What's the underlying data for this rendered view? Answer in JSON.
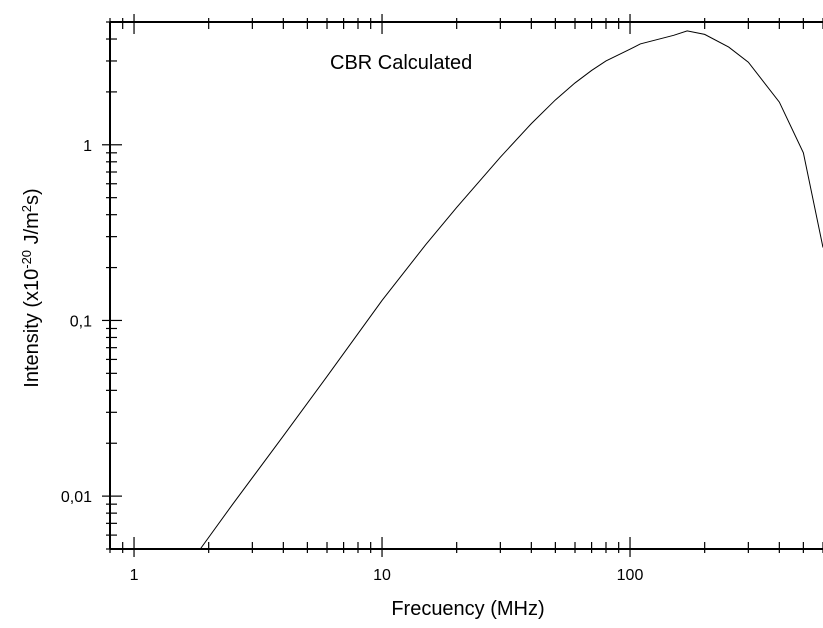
{
  "chart_data": {
    "type": "line",
    "title": "",
    "annotation": "CBR Calculated",
    "xlabel": "Frecuency (MHz)",
    "ylabel_parts": [
      "Intensity (x10",
      "-20",
      " J/m",
      "2",
      "s)"
    ],
    "xscale": "log",
    "yscale": "log",
    "xlim": [
      0.8,
      600
    ],
    "ylim": [
      0.005,
      5
    ],
    "x_ticks": [
      {
        "value": 1,
        "label": "1"
      },
      {
        "value": 10,
        "label": "10"
      },
      {
        "value": 100,
        "label": "100"
      }
    ],
    "y_ticks": [
      {
        "value": 0.01,
        "label": "0,01"
      },
      {
        "value": 0.1,
        "label": "0,1"
      },
      {
        "value": 1,
        "label": "1"
      }
    ],
    "grid": false,
    "legend": "none",
    "series": [
      {
        "name": "",
        "color": "#000000",
        "x": [
          1.85,
          2.5,
          4,
          6,
          10,
          15,
          20,
          30,
          40,
          50,
          60,
          70,
          80,
          100,
          110,
          150,
          170,
          200,
          250,
          300,
          400,
          500,
          600
        ],
        "y": [
          0.005,
          0.009,
          0.022,
          0.048,
          0.13,
          0.27,
          0.44,
          0.85,
          1.32,
          1.8,
          2.25,
          2.65,
          3.0,
          3.5,
          3.75,
          4.2,
          4.45,
          4.25,
          3.6,
          2.95,
          1.75,
          0.9,
          0.26
        ]
      }
    ]
  }
}
